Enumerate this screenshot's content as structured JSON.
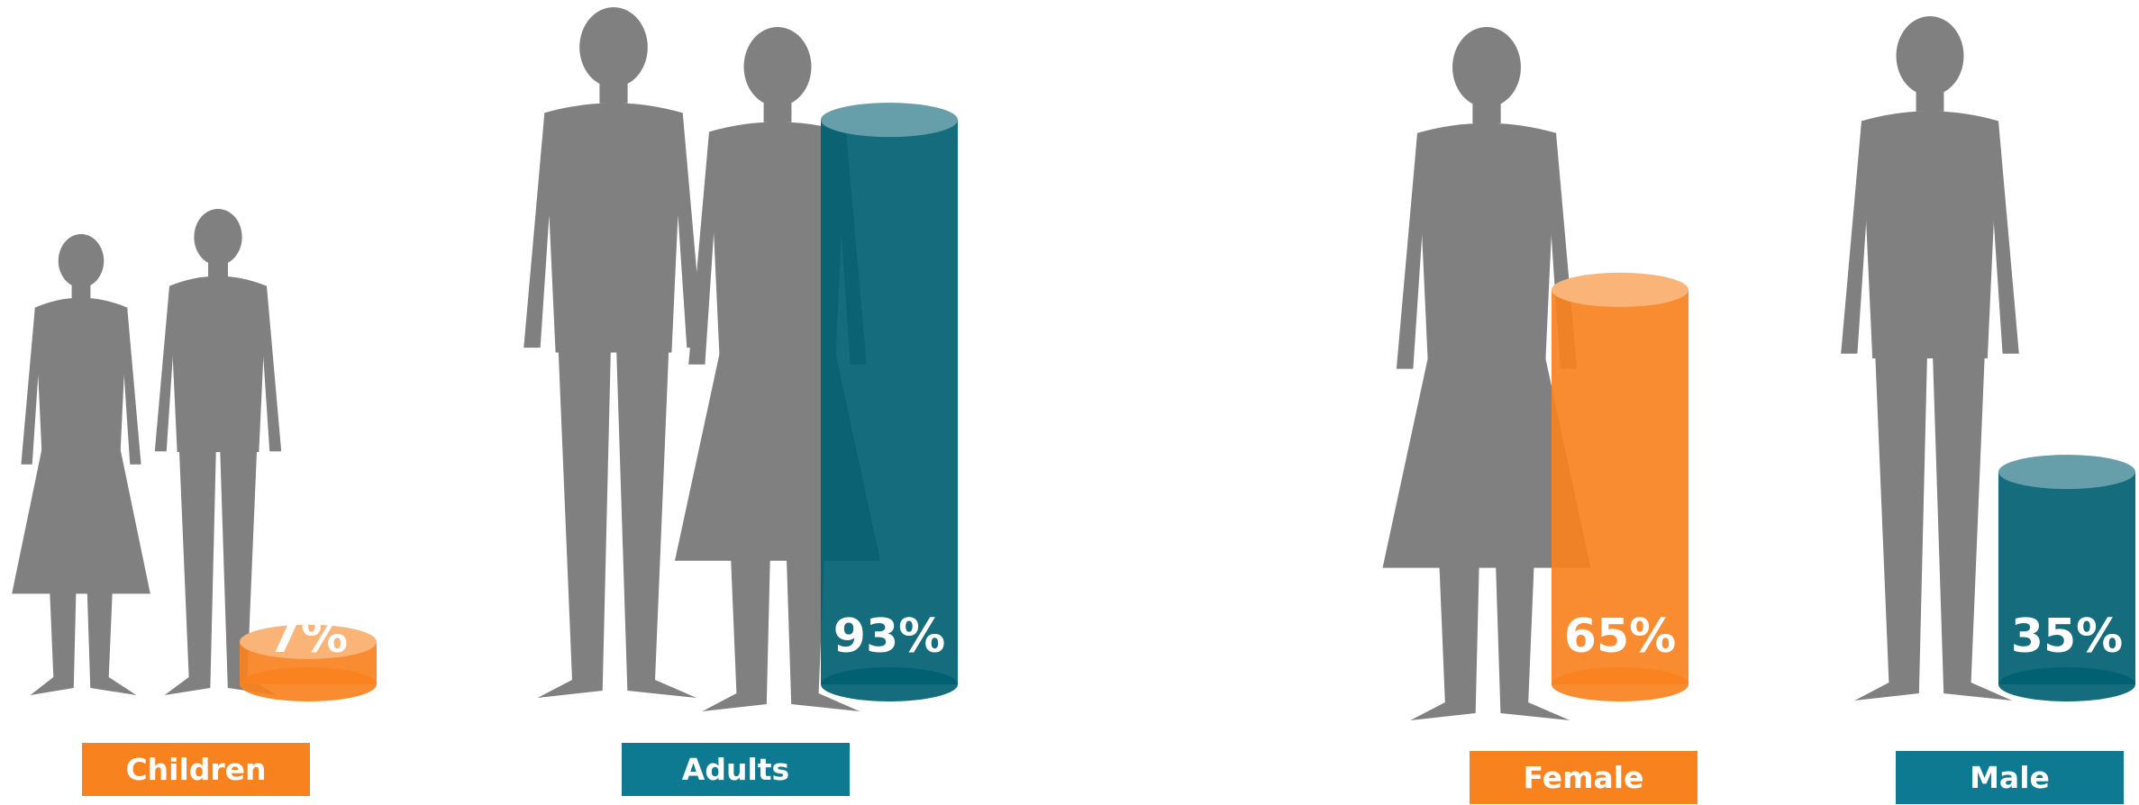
{
  "chart_data": [
    {
      "type": "cylinder",
      "categories": [
        "Children",
        "Adults"
      ],
      "values": [
        7,
        93
      ],
      "value_labels": [
        "7%",
        "93%"
      ],
      "colors": [
        "#f8821e",
        "#005f71"
      ],
      "label_colors": [
        "#f8821e",
        "#0d7a92"
      ]
    },
    {
      "type": "cylinder",
      "categories": [
        "Female",
        "Male"
      ],
      "values": [
        65,
        35
      ],
      "value_labels": [
        "65%",
        "35%"
      ],
      "colors": [
        "#f8821e",
        "#005f71"
      ],
      "label_colors": [
        "#f8821e",
        "#0d7a92"
      ]
    }
  ]
}
